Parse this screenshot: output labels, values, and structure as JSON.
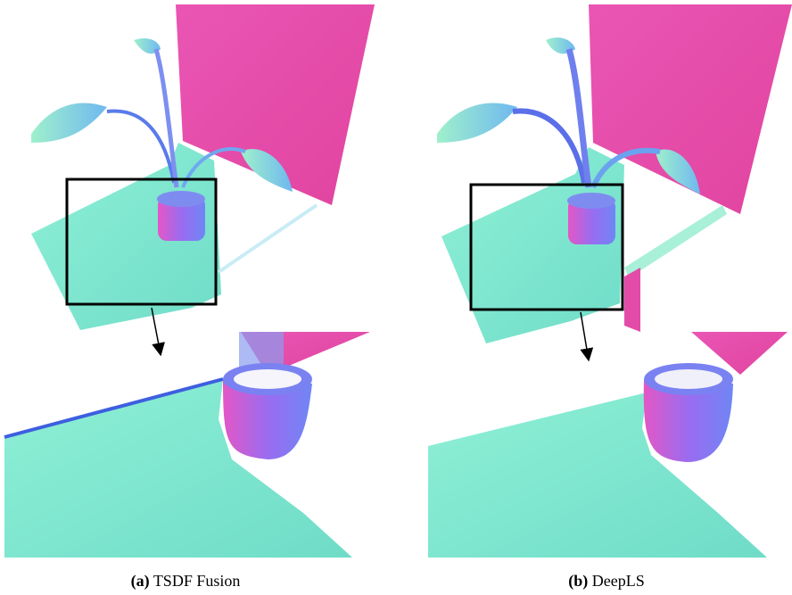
{
  "figure": {
    "subfigures": [
      {
        "label": "(a)",
        "caption": "TSDF Fusion"
      },
      {
        "label": "(b)",
        "caption": "DeepLS"
      }
    ]
  }
}
